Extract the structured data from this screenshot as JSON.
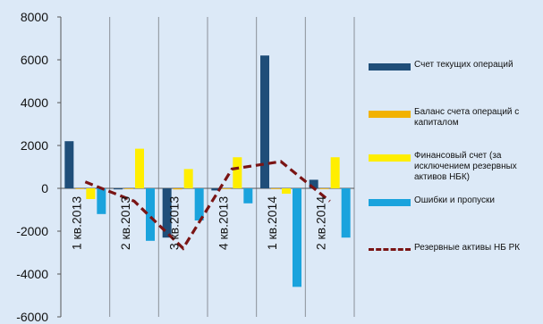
{
  "chart_data": {
    "type": "bar",
    "categories": [
      "1 кв.2013",
      "2 кв.2013",
      "3 кв.2013",
      "4 кв.2013",
      "1 кв.2014",
      "2 кв.2014"
    ],
    "ylim": [
      -6000,
      8000
    ],
    "yticks": [
      -6000,
      -4000,
      -2000,
      0,
      2000,
      4000,
      6000,
      8000
    ],
    "grid": "vertical separators between categories",
    "legend_position": "right",
    "series": [
      {
        "name": "Счет текущих операций",
        "kind": "bar",
        "color": "#1f4e79",
        "values": [
          2200,
          -50,
          -2300,
          -100,
          6200,
          400
        ]
      },
      {
        "name": "Баланс счета операций с капиталом",
        "kind": "bar",
        "color": "#f2b200",
        "values": [
          -30,
          -20,
          -50,
          -30,
          -20,
          -20
        ]
      },
      {
        "name": "Финансовый счет (за исключением резервных активов НБК)",
        "kind": "bar",
        "color": "#ffee00",
        "values": [
          -500,
          1850,
          900,
          1450,
          -250,
          1450
        ]
      },
      {
        "name": "Ошибки и пропуски",
        "kind": "bar",
        "color": "#1aa3dd",
        "values": [
          -1200,
          -2450,
          -1500,
          -700,
          -4600,
          -2300
        ]
      },
      {
        "name": "Резервные активы НБ РК",
        "kind": "line",
        "color": "#7a1414",
        "values": [
          300,
          -600,
          -2800,
          900,
          1250,
          -600
        ]
      }
    ]
  }
}
